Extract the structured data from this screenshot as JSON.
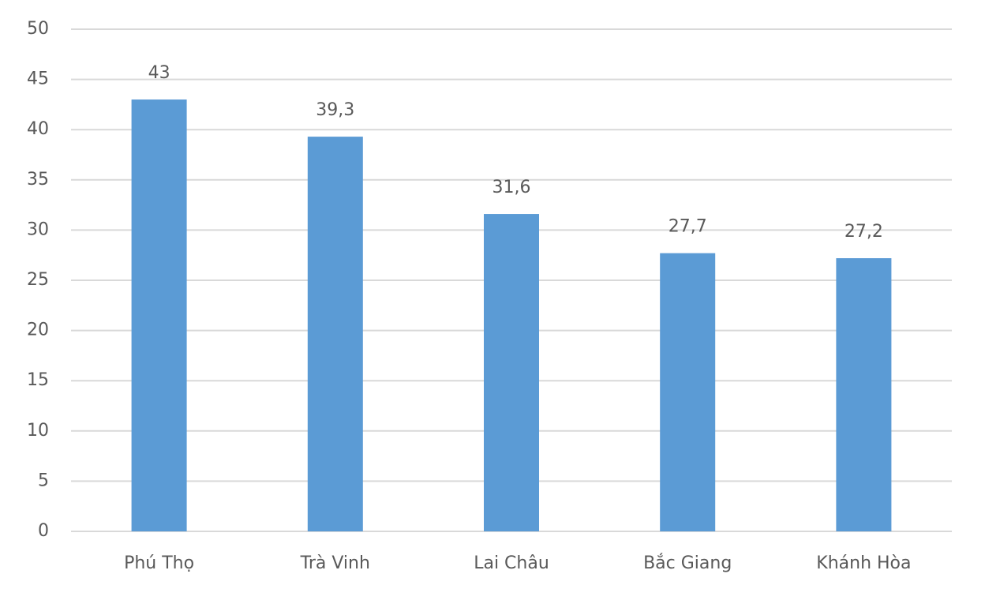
{
  "chart_data": {
    "type": "bar",
    "categories": [
      "Phú Thọ",
      "Trà Vinh",
      "Lai Châu",
      "Bắc Giang",
      "Khánh Hòa"
    ],
    "values": [
      43,
      39.3,
      31.6,
      27.7,
      27.2
    ],
    "value_labels": [
      "43",
      "39,3",
      "31,6",
      "27,7",
      "27,2"
    ],
    "color": "#5b9bd5",
    "ylim": [
      0,
      50
    ],
    "yticks": [
      0,
      5,
      10,
      15,
      20,
      25,
      30,
      35,
      40,
      45,
      50
    ],
    "grid": true
  }
}
